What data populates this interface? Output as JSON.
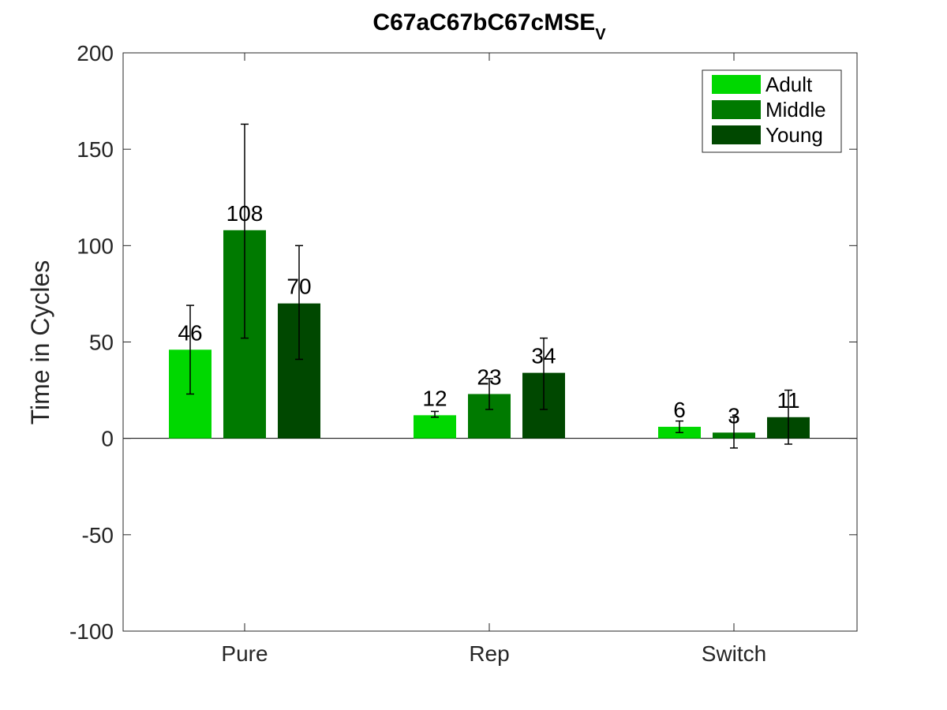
{
  "chart_data": {
    "type": "bar",
    "title": "C67aC67bC67cMSE",
    "title_subscript": "V",
    "xlabel": "",
    "ylabel": "Time in Cycles",
    "categories": [
      "Pure",
      "Rep",
      "Switch"
    ],
    "ylim": [
      -100,
      200
    ],
    "yticks": [
      -100,
      -50,
      0,
      50,
      100,
      150,
      200
    ],
    "grid": false,
    "legend_position": "top-right",
    "series": [
      {
        "name": "Adult",
        "color": "#00d800",
        "values": [
          46,
          12,
          6
        ],
        "labels": [
          "46",
          "12",
          "6"
        ],
        "error_low": [
          23,
          11,
          3
        ],
        "error_high": [
          69,
          14,
          9
        ]
      },
      {
        "name": "Middle",
        "color": "#007a00",
        "values": [
          108,
          23,
          3
        ],
        "labels": [
          "108",
          "23",
          "3"
        ],
        "error_low": [
          52,
          15,
          -5
        ],
        "error_high": [
          163,
          31,
          11
        ]
      },
      {
        "name": "Young",
        "color": "#004800",
        "values": [
          70,
          34,
          11
        ],
        "labels": [
          "70",
          "34",
          "11"
        ],
        "error_low": [
          41,
          15,
          -3
        ],
        "error_high": [
          100,
          52,
          25
        ]
      }
    ]
  }
}
